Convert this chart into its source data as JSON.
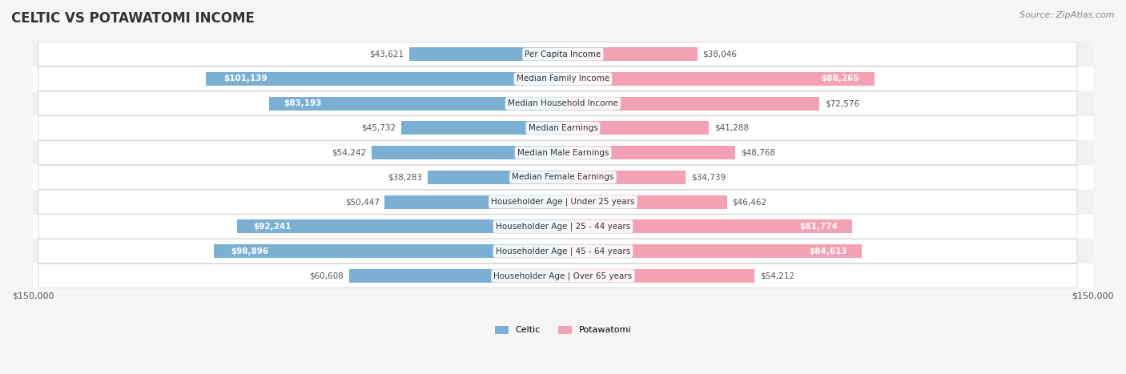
{
  "title": "CELTIC VS POTAWATOMI INCOME",
  "source": "Source: ZipAtlas.com",
  "categories": [
    "Per Capita Income",
    "Median Family Income",
    "Median Household Income",
    "Median Earnings",
    "Median Male Earnings",
    "Median Female Earnings",
    "Householder Age | Under 25 years",
    "Householder Age | 25 - 44 years",
    "Householder Age | 45 - 64 years",
    "Householder Age | Over 65 years"
  ],
  "celtic_values": [
    43621,
    101139,
    83193,
    45732,
    54242,
    38283,
    50447,
    92241,
    98896,
    60608
  ],
  "potawatomi_values": [
    38046,
    88265,
    72576,
    41288,
    48768,
    34739,
    46462,
    81774,
    84613,
    54212
  ],
  "celtic_color": "#7BAFD4",
  "potawatomi_color": "#F4A0B5",
  "celtic_label_color_default": "#555555",
  "celtic_label_color_inside": "#ffffff",
  "potawatomi_label_color_default": "#555555",
  "potawatomi_label_color_inside": "#ffffff",
  "inside_threshold": 80000,
  "axis_max": 150000,
  "background_color": "#f5f5f5",
  "row_bg_color": "#ffffff",
  "bar_height": 0.55,
  "legend_labels": [
    "Celtic",
    "Potawatomi"
  ]
}
